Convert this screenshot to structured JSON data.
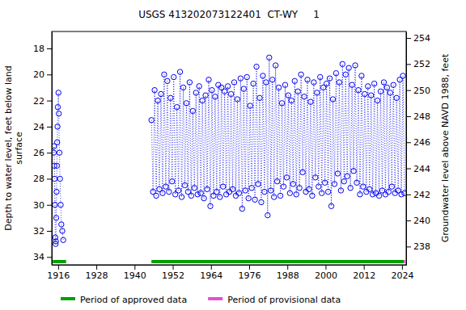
{
  "chart_data": {
    "type": "scatter",
    "title": "USGS 413202073122401  CT-WY     1",
    "ylabel": [
      "Depth to water level, feet below land",
      "surface"
    ],
    "y2label": "Groundwater level above NAVD 1988, feet",
    "xlim": [
      1914,
      2025.3
    ],
    "xticks": [
      1916,
      1928,
      1940,
      1952,
      1964,
      1976,
      1988,
      2000,
      2012,
      2024
    ],
    "ylim": [
      34.6,
      16.7
    ],
    "yticks": [
      18,
      20,
      22,
      24,
      26,
      28,
      30,
      32,
      34
    ],
    "y2lim": [
      236.6,
      254.5
    ],
    "y2ticks": [
      238,
      240,
      242,
      244,
      246,
      248,
      250,
      252,
      254
    ],
    "grid": false,
    "legend": "bottom",
    "x": [
      1914.6,
      1914.7,
      1914.8,
      1914.9,
      1915.0,
      1915.1,
      1915.2,
      1915.3,
      1915.4,
      1915.5,
      1915.6,
      1915.7,
      1915.8,
      1915.9,
      1916.1,
      1916.2,
      1916.4,
      1916.6,
      1916.8,
      1917.0,
      1917.3,
      1917.6,
      1930,
      1945.3,
      1945.8,
      1946.3,
      1946.8,
      1947.3,
      1947.8,
      1948.3,
      1948.8,
      1949.3,
      1949.8,
      1950.3,
      1950.8,
      1951.3,
      1951.8,
      1952.3,
      1952.8,
      1953.3,
      1953.8,
      1954.3,
      1954.8,
      1955.3,
      1955.8,
      1956.3,
      1956.8,
      1957.3,
      1957.8,
      1958.3,
      1958.8,
      1959.3,
      1959.8,
      1960.3,
      1960.8,
      1961.3,
      1961.8,
      1962.3,
      1962.8,
      1963.3,
      1963.8,
      1964.3,
      1964.8,
      1965.3,
      1965.8,
      1966.3,
      1966.8,
      1967.3,
      1967.8,
      1968.3,
      1968.8,
      1969.3,
      1969.8,
      1970.3,
      1970.8,
      1971.3,
      1971.8,
      1972.3,
      1972.8,
      1973.3,
      1973.8,
      1974.3,
      1974.8,
      1975.3,
      1975.8,
      1976.3,
      1976.8,
      1977.3,
      1977.8,
      1978.3,
      1978.8,
      1979.3,
      1979.8,
      1980.3,
      1980.8,
      1981.3,
      1981.8,
      1982.3,
      1982.8,
      1983.3,
      1983.8,
      1984.3,
      1984.8,
      1985.3,
      1985.8,
      1986.3,
      1986.8,
      1987.3,
      1987.8,
      1988.3,
      1988.8,
      1989.3,
      1989.8,
      1990.3,
      1990.8,
      1991.3,
      1991.8,
      1992.3,
      1992.8,
      1993.3,
      1993.8,
      1994.3,
      1994.8,
      1995.3,
      1995.8,
      1996.3,
      1996.8,
      1997.3,
      1997.8,
      1998.3,
      1998.8,
      1999.3,
      1999.8,
      2000.3,
      2000.8,
      2001.3,
      2001.8,
      2002.3,
      2002.8,
      2003.3,
      2003.8,
      2004.3,
      2004.8,
      2005.3,
      2005.8,
      2006.3,
      2006.8,
      2007.3,
      2007.8,
      2008.3,
      2008.8,
      2009.3,
      2009.8,
      2010.3,
      2010.8,
      2011.3,
      2011.8,
      2012.3,
      2012.8,
      2013.3,
      2013.8,
      2014.3,
      2014.8,
      2015.3,
      2015.8,
      2016.3,
      2016.8,
      2017.3,
      2017.8,
      2018.3,
      2018.8,
      2019.3,
      2019.8,
      2020.3,
      2020.8,
      2021.3,
      2021.8,
      2022.3,
      2022.8,
      2023.3,
      2023.8,
      2024.3,
      2024.8
    ],
    "series": [
      {
        "name": "Depth to water level",
        "color": "#0000ee",
        "marker": "circle",
        "line_style": "dotted",
        "values": [
          26,
          25.5,
          27,
          28,
          30,
          32.5,
          33,
          32.8,
          31,
          29,
          27,
          25.2,
          24,
          22.5,
          21.4,
          23,
          26,
          28,
          30,
          31.5,
          32,
          32.7,
          null,
          23.5,
          29.0,
          21.2,
          29.3,
          22.0,
          28.8,
          21.5,
          29.1,
          20.0,
          28.6,
          20.5,
          29.0,
          21.8,
          28.2,
          20.2,
          29.2,
          22.5,
          28.9,
          19.8,
          29.4,
          21.0,
          28.5,
          22.2,
          29.0,
          20.6,
          29.3,
          22.8,
          28.7,
          21.4,
          29.2,
          20.9,
          29.1,
          22.0,
          29.5,
          21.6,
          28.8,
          20.4,
          30.1,
          21.2,
          29.3,
          21.7,
          29.0,
          20.8,
          29.4,
          21.0,
          28.6,
          21.3,
          29.2,
          20.9,
          29.0,
          21.5,
          28.8,
          20.6,
          29.3,
          21.9,
          29.1,
          20.3,
          30.3,
          21.1,
          28.9,
          20.2,
          29.5,
          22.4,
          28.7,
          20.7,
          29.6,
          19.4,
          28.4,
          21.8,
          29.8,
          20.1,
          29.0,
          20.6,
          30.8,
          18.7,
          28.9,
          20.4,
          29.4,
          19.3,
          28.2,
          21.0,
          29.3,
          22.2,
          28.6,
          20.8,
          27.9,
          21.6,
          29.1,
          22.0,
          28.4,
          20.5,
          29.2,
          21.3,
          28.7,
          20.0,
          27.5,
          21.7,
          29.0,
          20.4,
          28.8,
          22.1,
          29.3,
          20.6,
          27.9,
          21.4,
          28.6,
          20.2,
          29.1,
          21.0,
          28.3,
          20.7,
          29.0,
          20.3,
          30.1,
          21.9,
          28.4,
          19.9,
          27.6,
          20.6,
          28.9,
          19.2,
          28.2,
          20.0,
          27.8,
          19.5,
          28.7,
          20.8,
          27.4,
          19.3,
          28.3,
          21.2,
          29.2,
          20.1,
          28.6,
          21.5,
          29.0,
          20.9,
          28.8,
          21.6,
          29.2,
          20.7,
          29.1,
          22.0,
          29.3,
          21.3,
          28.9,
          20.6,
          29.2,
          21.0,
          29.0,
          21.4,
          28.6,
          20.8,
          29.1,
          21.8,
          28.9,
          20.4,
          29.2,
          20.1,
          29.1
        ]
      }
    ],
    "periods": [
      {
        "name": "Period of approved data",
        "color": "#00a000",
        "start": [
          1914.3,
          1945.3
        ],
        "end": [
          1918.5,
          2024.6
        ]
      },
      {
        "name": "Period of provisional data",
        "color": "#e64fd0",
        "start": [
          2024.6
        ],
        "end": [
          2025.0
        ]
      }
    ]
  }
}
